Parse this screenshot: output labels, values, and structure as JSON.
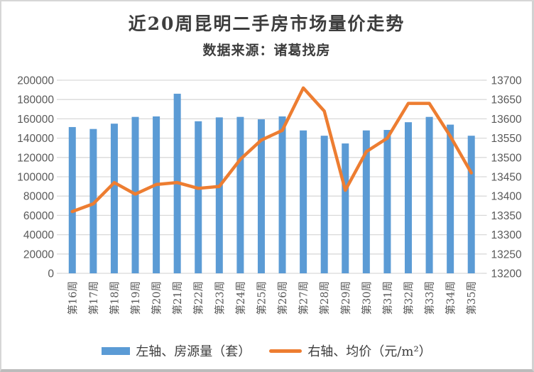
{
  "title": "近20周昆明二手房市场量价走势",
  "subtitle": "数据来源：诸葛找房",
  "legend": {
    "bar_label": "左轴、房源量（套）",
    "line_label": "右轴、均价（元/m²）"
  },
  "colors": {
    "bar": "#5B9BD5",
    "line": "#ED7D31",
    "grid": "#D9D9D9",
    "axis_text": "#595959",
    "title_text": "#3D3D3D"
  },
  "chart_data": {
    "type": "bar+line combo",
    "title": "近20周昆明二手房市场量价走势",
    "subtitle": "数据来源：诸葛找房",
    "grid": true,
    "legend_position": "bottom",
    "categories": [
      "第16周",
      "第17周",
      "第18周",
      "第19周",
      "第20周",
      "第21周",
      "第22周",
      "第23周",
      "第24周",
      "第25周",
      "第26周",
      "第27周",
      "第28周",
      "第29周",
      "第30周",
      "第31周",
      "第32周",
      "第33周",
      "第34周",
      "第35周"
    ],
    "series": [
      {
        "name": "左轴、房源量（套）",
        "type": "bar",
        "axis": "left",
        "values": [
          151500,
          149500,
          155000,
          162000,
          162500,
          186000,
          157500,
          161500,
          162000,
          159500,
          162500,
          148000,
          142500,
          134500,
          148000,
          148500,
          156500,
          162000,
          154000,
          142500
        ]
      },
      {
        "name": "右轴、均价（元/m²）",
        "type": "line",
        "axis": "right",
        "values": [
          13360,
          13380,
          13435,
          13405,
          13430,
          13435,
          13420,
          13425,
          13495,
          13545,
          13570,
          13680,
          13620,
          13415,
          13515,
          13550,
          13640,
          13640,
          13555,
          13460
        ]
      }
    ],
    "left_axis": {
      "min": 0,
      "max": 200000,
      "step": 20000,
      "ticks": [
        0,
        20000,
        40000,
        60000,
        80000,
        100000,
        120000,
        140000,
        160000,
        180000,
        200000
      ]
    },
    "right_axis": {
      "min": 13200,
      "max": 13700,
      "step": 50,
      "ticks": [
        13200,
        13250,
        13300,
        13350,
        13400,
        13450,
        13500,
        13550,
        13600,
        13650,
        13700
      ]
    }
  }
}
